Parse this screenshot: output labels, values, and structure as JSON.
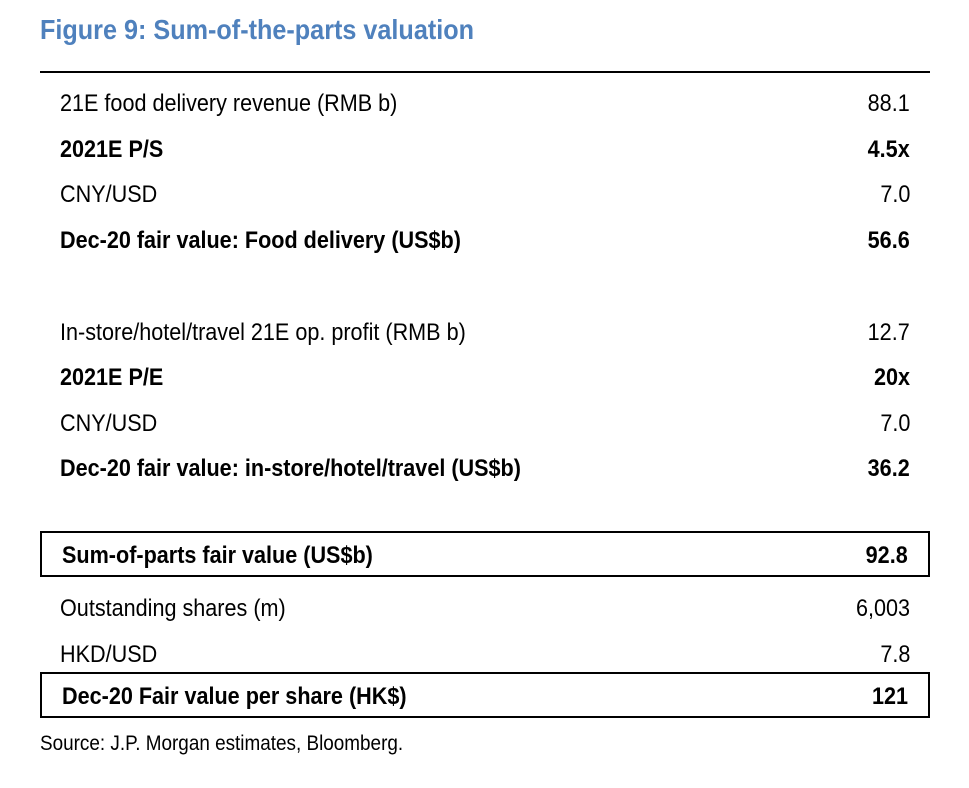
{
  "title": "Figure 9: Sum-of-the-parts valuation",
  "rows": [
    {
      "label": "21E food delivery revenue (RMB b)",
      "value": "88.1",
      "bold": false,
      "boxed": false
    },
    {
      "label": "2021E P/S",
      "value": "4.5x",
      "bold": true,
      "boxed": false
    },
    {
      "label": "CNY/USD",
      "value": "7.0",
      "bold": false,
      "boxed": false
    },
    {
      "label": "Dec-20 fair value: Food delivery (US$b)",
      "value": "56.6",
      "bold": true,
      "boxed": false
    },
    {
      "label": "In-store/hotel/travel 21E op. profit (RMB b)",
      "value": "12.7",
      "bold": false,
      "boxed": false
    },
    {
      "label": "2021E P/E",
      "value": "20x",
      "bold": true,
      "boxed": false
    },
    {
      "label": "CNY/USD",
      "value": "7.0",
      "bold": false,
      "boxed": false
    },
    {
      "label": "Dec-20 fair value: in-store/hotel/travel (US$b)",
      "value": "36.2",
      "bold": true,
      "boxed": false
    },
    {
      "label": "Sum-of-parts fair value (US$b)",
      "value": "92.8",
      "bold": true,
      "boxed": true
    },
    {
      "label": "Outstanding shares (m)",
      "value": "6,003",
      "bold": false,
      "boxed": false
    },
    {
      "label": "HKD/USD",
      "value": "7.8",
      "bold": false,
      "boxed": false
    },
    {
      "label": "Dec-20 Fair value per share (HK$)",
      "value": "121",
      "bold": true,
      "boxed": true
    }
  ],
  "source": "Source: J.P. Morgan estimates, Bloomberg.",
  "colors": {
    "title": "#4f81bd",
    "text": "#000000"
  }
}
